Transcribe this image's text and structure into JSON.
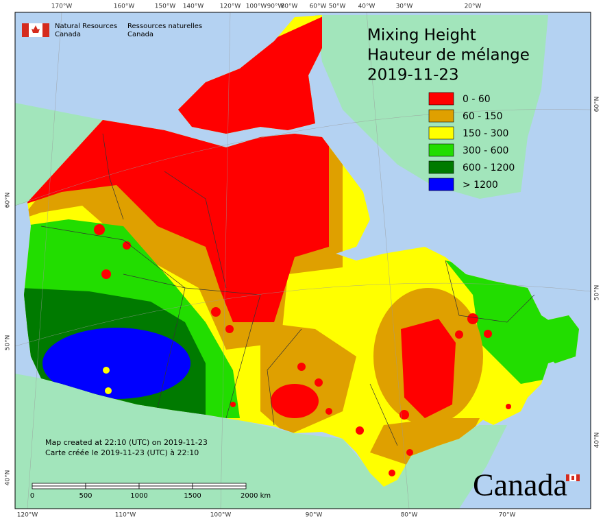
{
  "logo": {
    "en": [
      "Natural Resources",
      "Canada"
    ],
    "fr": [
      "Ressources naturelles",
      "Canada"
    ]
  },
  "title": [
    "Mixing Height",
    "Hauteur de mélange",
    "2019-11-23"
  ],
  "legend": [
    {
      "label": "0 - 60",
      "color": "#ff0000"
    },
    {
      "label": "60 - 150",
      "color": "#dfa000"
    },
    {
      "label": "150 - 300",
      "color": "#ffff00"
    },
    {
      "label": "300 - 600",
      "color": "#22dd00"
    },
    {
      "label": "600 - 1200",
      "color": "#007a00"
    },
    {
      "label": "> 1200",
      "color": "#0000ff"
    }
  ],
  "graticule": {
    "top": [
      "170°W",
      "160°W",
      "150°W",
      "140°W",
      "120°W",
      "100°W",
      "90°W",
      "80°W",
      "60°W",
      "50°W",
      "40°W",
      "30°W",
      "20°W"
    ],
    "bottom": [
      "120°W",
      "110°W",
      "100°W",
      "90°W",
      "80°W",
      "70°W"
    ],
    "left": [
      "60°N",
      "50°N",
      "40°N"
    ],
    "right": [
      "60°N",
      "50°N",
      "40°N"
    ]
  },
  "notes": [
    "Map created at 22:10 (UTC) on 2019-11-23",
    "Carte créée le 2019-11-23 (UTC) à 22:10"
  ],
  "scale": [
    "0",
    "500",
    "1000",
    "1500",
    "2000 km"
  ],
  "wordmark": "Canada"
}
